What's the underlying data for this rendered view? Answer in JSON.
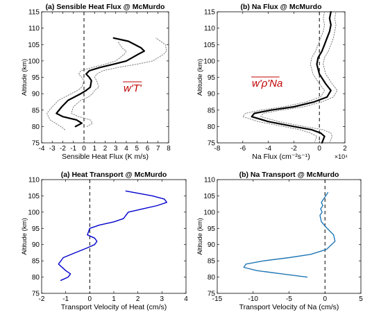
{
  "colors": {
    "black": "#000000",
    "dotted": "#808080",
    "blue": "#0000cc",
    "teal": "#1f77b4",
    "annotation": "#c00000"
  },
  "chart_data": [
    {
      "type": "line",
      "title": "(a) Sensible Heat Flux @ McMurdo",
      "xlabel": "Sensible Heat Flux (K m/s)",
      "ylabel": "Altitude (km)",
      "xlim": [
        -4,
        8
      ],
      "ylim": [
        75,
        115
      ],
      "xticks": [
        "-4",
        "-3",
        "-2",
        "-1",
        "0",
        "1",
        "2",
        "3",
        "4",
        "5",
        "6",
        "7",
        "8"
      ],
      "yticks": [
        "75",
        "80",
        "85",
        "90",
        "95",
        "100",
        "105",
        "110",
        "115"
      ],
      "annotation": "w'T'",
      "series": [
        {
          "role": "mean",
          "x": [
            -0.8,
            -0.2,
            -0.7,
            -2.0,
            -2.6,
            -2.1,
            -1.5,
            -0.9,
            -0.3,
            0.2,
            0.6,
            0.7,
            0.5,
            0.2,
            0.5,
            1.5,
            2.8,
            4.0,
            5.1,
            5.7,
            5.4,
            4.2,
            2.8
          ],
          "y": [
            80,
            81,
            82,
            83,
            84,
            86,
            88,
            89,
            90,
            91,
            92,
            94,
            95,
            96,
            97,
            98,
            99,
            100,
            102,
            103,
            104,
            106,
            107
          ]
        },
        {
          "role": "upper",
          "x": [
            0.3,
            0.8,
            0.6,
            -0.5,
            -1.2,
            -1.0,
            -0.3,
            0.4,
            0.8,
            1.0,
            1.4,
            1.2,
            1.0,
            1.2,
            1.8,
            3.2,
            5.0,
            6.5,
            7.5,
            7.8,
            7.7,
            6.8
          ],
          "y": [
            80,
            81,
            82,
            83,
            84,
            86,
            88,
            89,
            90,
            91,
            92,
            94,
            95,
            96,
            97,
            98,
            99,
            100,
            102,
            103,
            105,
            107
          ]
        },
        {
          "role": "lower",
          "x": [
            -1.8,
            -2.2,
            -3.2,
            -3.5,
            -3.0,
            -2.4,
            -1.8,
            -1.2,
            -0.6,
            -0.2,
            0.0,
            -0.2,
            -0.5,
            -0.3,
            0.8,
            2.0,
            3.0,
            3.8,
            4.0,
            3.6,
            3.2
          ],
          "y": [
            79,
            80,
            82,
            84,
            86,
            88,
            89,
            90,
            91,
            92,
            94,
            95,
            96,
            97,
            98,
            99,
            100,
            102,
            103,
            104,
            106
          ]
        }
      ]
    },
    {
      "type": "line",
      "title": "(b) Na Flux @ McMurdo",
      "xlabel": "Na Flux (cm⁻²s⁻¹)",
      "ylabel": "Altitude (km)",
      "xlim": [
        -8,
        2
      ],
      "ylim": [
        75,
        115
      ],
      "xticks": [
        "-8",
        "-6",
        "-4",
        "-2",
        "0",
        "2"
      ],
      "yticks": [
        "75",
        "80",
        "85",
        "90",
        "95",
        "100",
        "105",
        "110",
        "115"
      ],
      "exponent": "×10⁴",
      "annotation": "w'ρ'Na",
      "series": [
        {
          "role": "mean",
          "x": [
            0.2,
            0.4,
            0.1,
            -0.6,
            -2.0,
            -4.0,
            -5.3,
            -5.1,
            -3.8,
            -2.0,
            -0.4,
            0.6,
            0.9,
            0.5,
            0.0,
            -0.2,
            -0.1,
            0.2,
            0.4,
            0.6,
            0.8,
            0.9,
            0.8,
            0.9
          ],
          "y": [
            75,
            77,
            78,
            79,
            80,
            81.5,
            83,
            84,
            85,
            86,
            87.5,
            89,
            91,
            93,
            96,
            99,
            101,
            103,
            105,
            107,
            109,
            111,
            113,
            115
          ]
        },
        {
          "role": "upper",
          "x": [
            0.8,
            1.0,
            0.9,
            0.3,
            -1.2,
            -3.2,
            -4.6,
            -4.4,
            -3.0,
            -1.2,
            0.2,
            1.1,
            1.4,
            1.0,
            0.5,
            0.3,
            0.4,
            0.7,
            0.9,
            1.1,
            1.2,
            1.3,
            1.2,
            1.3
          ],
          "y": [
            75,
            77,
            78,
            79,
            80,
            81.5,
            83,
            84,
            85,
            86,
            87.5,
            89,
            91,
            93,
            96,
            99,
            101,
            103,
            105,
            107,
            109,
            111,
            113,
            115
          ]
        },
        {
          "role": "lower",
          "x": [
            -0.4,
            -0.2,
            -0.7,
            -1.5,
            -2.8,
            -4.8,
            -6.0,
            -5.8,
            -4.6,
            -2.8,
            -1.0,
            0.1,
            0.4,
            0.0,
            -0.5,
            -0.7,
            -0.6,
            -0.3,
            -0.1,
            0.1,
            0.3,
            0.4,
            0.3,
            0.4
          ],
          "y": [
            75,
            77,
            78,
            79,
            80,
            81.5,
            83,
            84,
            85,
            86,
            87.5,
            89,
            91,
            93,
            96,
            99,
            101,
            103,
            105,
            107,
            109,
            111,
            113,
            115
          ]
        }
      ]
    },
    {
      "type": "line",
      "title": "(a) Heat Transport @ McMurdo",
      "xlabel": "Transport Velocity of Heat (cm/s)",
      "ylabel": "Altitude (km)",
      "xlim": [
        -2,
        4
      ],
      "ylim": [
        75,
        110
      ],
      "xticks": [
        "-2",
        "-1",
        "0",
        "1",
        "2",
        "3",
        "4"
      ],
      "yticks": [
        "75",
        "80",
        "85",
        "90",
        "95",
        "100",
        "105",
        "110"
      ],
      "series": [
        {
          "role": "mean",
          "x": [
            -1.2,
            -0.9,
            -0.8,
            -1.0,
            -1.3,
            -1.1,
            -0.6,
            -0.1,
            0.2,
            0.3,
            0.2,
            -0.1,
            0.0,
            0.4,
            1.0,
            1.4,
            1.6,
            2.2,
            2.8,
            3.2,
            3.1,
            2.6,
            1.5
          ],
          "y": [
            79,
            80,
            81,
            82,
            84,
            86,
            87.5,
            89,
            90,
            91,
            92,
            93,
            95,
            96,
            97,
            98,
            100,
            101,
            102,
            103,
            104,
            105,
            106.5
          ]
        }
      ]
    },
    {
      "type": "line",
      "title": "(b) Na Transport @ McMurdo",
      "xlabel": "Transport Velocity of Na (cm/s)",
      "ylabel": "Altitude (km)",
      "xlim": [
        -15,
        5
      ],
      "ylim": [
        75,
        110
      ],
      "xticks": [
        "-15",
        "-10",
        "-5",
        "0",
        "5"
      ],
      "yticks": [
        "75",
        "80",
        "85",
        "90",
        "95",
        "100",
        "105",
        "110"
      ],
      "series": [
        {
          "role": "mean",
          "x": [
            -2.5,
            -6.0,
            -9.5,
            -11.3,
            -11.0,
            -8.5,
            -5.0,
            -2.0,
            0.2,
            1.4,
            1.2,
            0.3,
            -0.5,
            -0.7,
            -0.4,
            -0.6,
            -0.3,
            -0.5,
            -0.2,
            0.4
          ],
          "y": [
            80,
            81,
            82,
            83,
            84,
            85,
            86,
            87,
            88.5,
            91,
            93,
            95,
            97,
            99,
            100,
            101,
            102,
            103,
            104,
            106
          ]
        }
      ]
    }
  ]
}
